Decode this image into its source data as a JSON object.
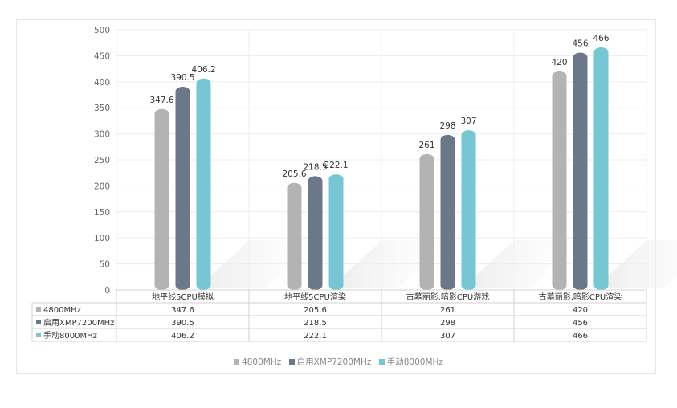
{
  "chart_data": {
    "type": "bar",
    "categories": [
      "地平线5CPU模拟",
      "地平线5CPU渲染",
      "古墓丽影.暗影CPU游戏",
      "古墓丽影.暗影CPU渲染"
    ],
    "series": [
      {
        "name": "4800MHz",
        "color": "#b3b3b3",
        "values": [
          347.6,
          205.6,
          261,
          420
        ],
        "labels": [
          "347.6",
          "205.6",
          "261",
          "420"
        ]
      },
      {
        "name": "启用XMP7200MHz",
        "color": "#6a7889",
        "values": [
          390.5,
          218.5,
          298,
          456
        ],
        "labels": [
          "390.5",
          "218.5",
          "298",
          "456"
        ]
      },
      {
        "name": "手动8000MHz",
        "color": "#77c6d4",
        "values": [
          406.2,
          222.1,
          307,
          466
        ],
        "labels": [
          "406.2",
          "222.1",
          "307",
          "466"
        ]
      }
    ],
    "ylim": [
      0,
      500
    ],
    "yticks": [
      "0",
      "50",
      "100",
      "150",
      "200",
      "250",
      "300",
      "350",
      "400",
      "450",
      "500"
    ],
    "grid": true,
    "data_table": true,
    "legend": "bottom-center"
  }
}
